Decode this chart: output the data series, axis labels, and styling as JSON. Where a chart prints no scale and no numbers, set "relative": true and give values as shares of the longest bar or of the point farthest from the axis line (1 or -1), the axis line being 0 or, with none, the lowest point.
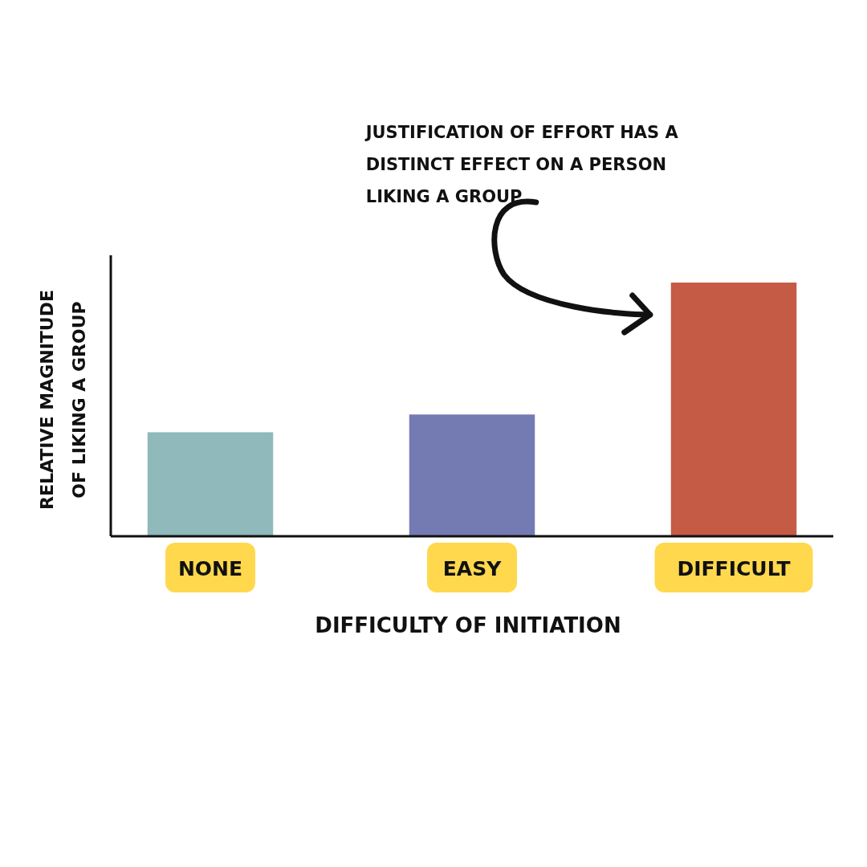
{
  "chart_data": {
    "type": "bar",
    "relative": true,
    "xlabel": "DIFFICULTY OF INITIATION",
    "ylabel": "RELATIVE MAGNITUDE OF LIKING A GROUP",
    "categories": [
      "NONE",
      "EASY",
      "DIFFICULT"
    ],
    "values": [
      0.41,
      0.48,
      1
    ],
    "colors": [
      "#8fb9bb",
      "#747bb3",
      "#c55a45"
    ],
    "annotations": [
      "JUSTIFICATION OF EFFORT HAS A DISTINCT EFFECT ON A PERSON LIKING A GROUP"
    ]
  }
}
